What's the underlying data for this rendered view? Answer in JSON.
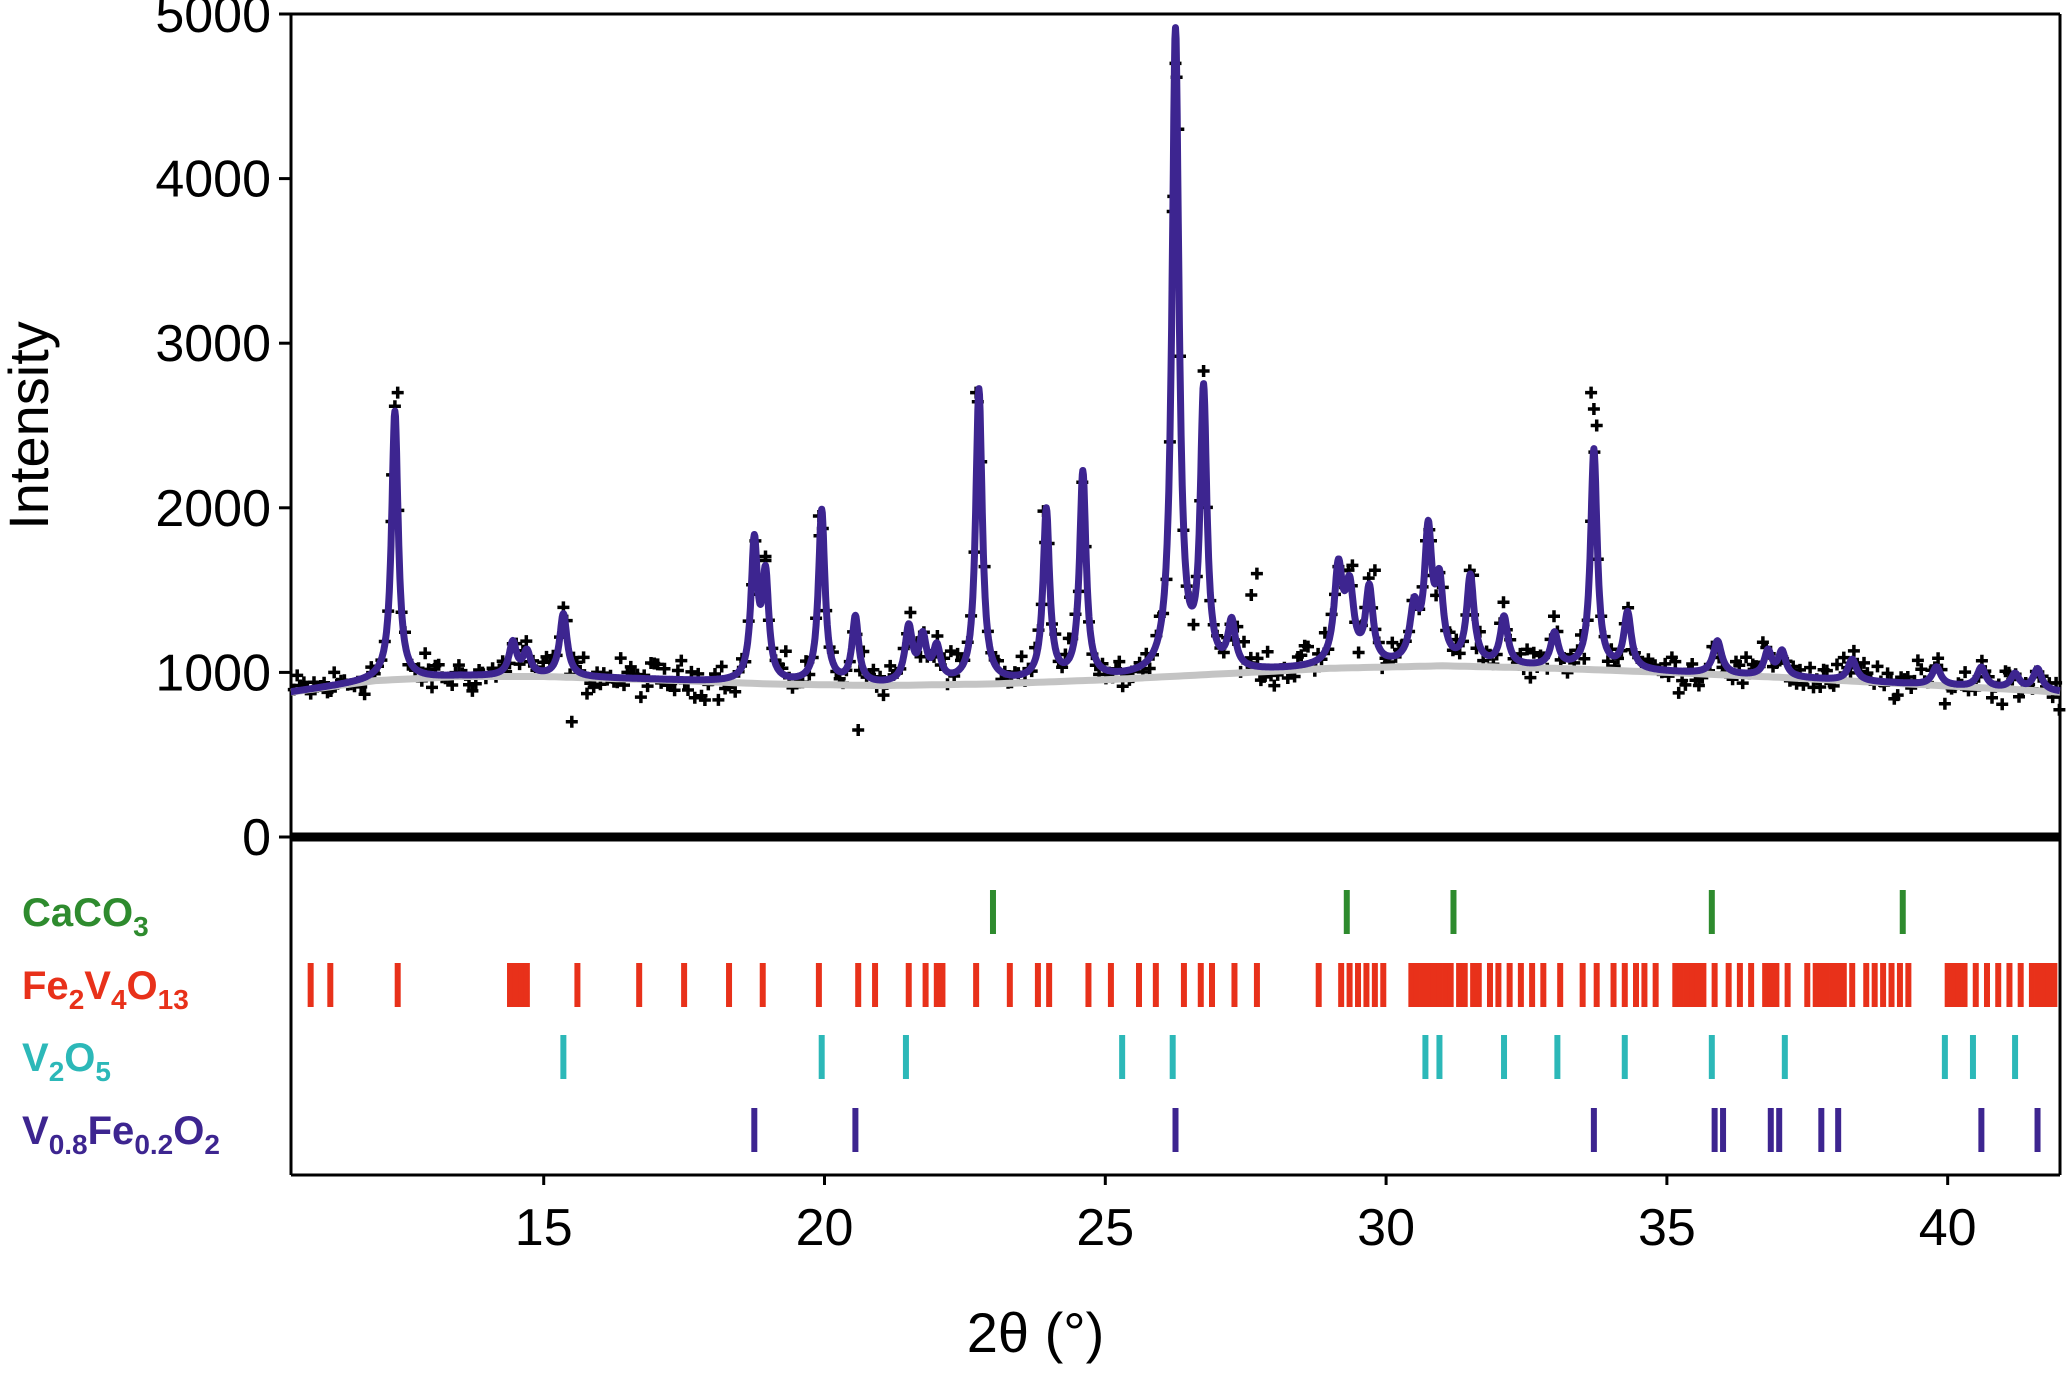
{
  "chart_data": {
    "type": "line",
    "title": "",
    "xlabel": "2θ (°)",
    "ylabel": "Intensity",
    "xlim": [
      10.5,
      42
    ],
    "ylim": [
      0,
      5000
    ],
    "x_ticks": [
      15,
      20,
      25,
      30,
      35,
      40
    ],
    "y_ticks": [
      0,
      1000,
      2000,
      3000,
      4000,
      5000
    ],
    "grid": false,
    "colors": {
      "observed": "#000000",
      "calculated": "#3d2590",
      "background": "#c4c4c4",
      "CaCO3": "#2e8b2e",
      "Fe2V4O13": "#e8311a",
      "V2O5": "#2cb8b8",
      "V0.8Fe0.2O2": "#3d2590"
    },
    "background_curve": [
      [
        10.5,
        880
      ],
      [
        12,
        950
      ],
      [
        13.5,
        975
      ],
      [
        15,
        975
      ],
      [
        17,
        955
      ],
      [
        19,
        930
      ],
      [
        21,
        920
      ],
      [
        23,
        930
      ],
      [
        25,
        955
      ],
      [
        27,
        990
      ],
      [
        29,
        1025
      ],
      [
        31,
        1040
      ],
      [
        33,
        1025
      ],
      [
        35,
        1000
      ],
      [
        37,
        970
      ],
      [
        39,
        935
      ],
      [
        41,
        900
      ],
      [
        42,
        880
      ]
    ],
    "peaks": [
      {
        "x": 12.35,
        "height": 1630,
        "width": 0.07
      },
      {
        "x": 14.45,
        "height": 200,
        "width": 0.08
      },
      {
        "x": 14.7,
        "height": 140,
        "width": 0.08
      },
      {
        "x": 15.35,
        "height": 380,
        "width": 0.08
      },
      {
        "x": 18.75,
        "height": 830,
        "width": 0.07
      },
      {
        "x": 18.95,
        "height": 620,
        "width": 0.07
      },
      {
        "x": 19.95,
        "height": 1050,
        "width": 0.07
      },
      {
        "x": 20.55,
        "height": 400,
        "width": 0.07
      },
      {
        "x": 21.5,
        "height": 330,
        "width": 0.08
      },
      {
        "x": 21.75,
        "height": 260,
        "width": 0.08
      },
      {
        "x": 22.0,
        "height": 200,
        "width": 0.08
      },
      {
        "x": 22.75,
        "height": 1780,
        "width": 0.07
      },
      {
        "x": 23.95,
        "height": 1030,
        "width": 0.07
      },
      {
        "x": 24.6,
        "height": 1250,
        "width": 0.07
      },
      {
        "x": 26.25,
        "height": 3900,
        "width": 0.075
      },
      {
        "x": 26.75,
        "height": 1670,
        "width": 0.07
      },
      {
        "x": 27.25,
        "height": 280,
        "width": 0.08
      },
      {
        "x": 29.15,
        "height": 570,
        "width": 0.09
      },
      {
        "x": 29.35,
        "height": 430,
        "width": 0.09
      },
      {
        "x": 29.7,
        "height": 450,
        "width": 0.08
      },
      {
        "x": 30.5,
        "height": 320,
        "width": 0.09
      },
      {
        "x": 30.75,
        "height": 770,
        "width": 0.08
      },
      {
        "x": 30.95,
        "height": 450,
        "width": 0.08
      },
      {
        "x": 31.5,
        "height": 530,
        "width": 0.08
      },
      {
        "x": 32.1,
        "height": 290,
        "width": 0.08
      },
      {
        "x": 33.0,
        "height": 200,
        "width": 0.08
      },
      {
        "x": 33.7,
        "height": 1330,
        "width": 0.07
      },
      {
        "x": 34.3,
        "height": 340,
        "width": 0.08
      },
      {
        "x": 35.9,
        "height": 200,
        "width": 0.09
      },
      {
        "x": 36.8,
        "height": 150,
        "width": 0.08
      },
      {
        "x": 37.05,
        "height": 150,
        "width": 0.08
      },
      {
        "x": 38.3,
        "height": 130,
        "width": 0.09
      },
      {
        "x": 39.8,
        "height": 110,
        "width": 0.09
      },
      {
        "x": 40.6,
        "height": 120,
        "width": 0.09
      },
      {
        "x": 41.2,
        "height": 90,
        "width": 0.09
      },
      {
        "x": 41.6,
        "height": 130,
        "width": 0.09
      }
    ],
    "observed_extra_points": [
      [
        12.4,
        2700
      ],
      [
        12.3,
        2200
      ],
      [
        18.95,
        1680
      ],
      [
        23.9,
        1980
      ],
      [
        26.25,
        4700
      ],
      [
        26.3,
        4300
      ],
      [
        26.2,
        3800
      ],
      [
        27.7,
        1600
      ],
      [
        27.6,
        1470
      ],
      [
        29.4,
        1650
      ],
      [
        29.8,
        1620
      ],
      [
        30.8,
        1800
      ],
      [
        31.55,
        1590
      ],
      [
        33.65,
        2700
      ],
      [
        33.7,
        2600
      ],
      [
        33.75,
        2500
      ],
      [
        22.7,
        2700
      ],
      [
        19.9,
        1950
      ],
      [
        15.5,
        700
      ],
      [
        20.6,
        650
      ]
    ],
    "reflection_markers": [
      {
        "phase": "CaCO3",
        "positions": [
          23.0,
          29.3,
          31.2,
          35.8,
          39.2
        ]
      },
      {
        "phase": "Fe2V4O13",
        "positions": [
          10.85,
          11.2,
          12.4,
          14.4,
          14.5,
          14.6,
          14.7,
          15.6,
          16.7,
          17.5,
          18.3,
          18.9,
          19.9,
          20.6,
          20.9,
          21.5,
          21.8,
          22.0,
          22.1,
          22.7,
          23.3,
          23.8,
          24.0,
          24.7,
          25.1,
          25.6,
          25.9,
          26.4,
          26.7,
          26.9,
          27.3,
          27.7,
          28.8,
          29.2,
          29.35,
          29.5,
          29.65,
          29.8,
          29.95,
          30.45,
          30.55,
          30.65,
          30.75,
          30.85,
          30.95,
          31.05,
          31.15,
          31.3,
          31.4,
          31.55,
          31.65,
          31.85,
          32.0,
          32.2,
          32.4,
          32.6,
          32.8,
          33.1,
          33.5,
          33.75,
          34.05,
          34.25,
          34.45,
          34.6,
          34.8,
          35.15,
          35.25,
          35.35,
          35.45,
          35.55,
          35.65,
          35.85,
          36.1,
          36.3,
          36.5,
          36.75,
          36.85,
          36.95,
          37.15,
          37.5,
          37.65,
          37.75,
          37.85,
          37.95,
          38.05,
          38.15,
          38.3,
          38.55,
          38.7,
          38.85,
          39.0,
          39.15,
          39.3,
          40.0,
          40.1,
          40.2,
          40.3,
          40.5,
          40.7,
          40.9,
          41.1,
          41.3,
          41.5,
          41.6,
          41.7,
          41.8,
          41.9
        ]
      },
      {
        "phase": "V2O5",
        "positions": [
          15.35,
          19.95,
          21.45,
          25.3,
          26.2,
          30.7,
          30.95,
          32.1,
          33.05,
          34.25,
          35.8,
          37.1,
          39.95,
          40.45,
          41.2
        ]
      },
      {
        "phase": "V0.8Fe0.2O2",
        "positions": [
          18.75,
          20.55,
          26.25,
          33.7,
          35.85,
          36.0,
          36.85,
          37.0,
          37.75,
          38.05,
          40.6,
          41.6
        ]
      }
    ],
    "legend": [
      {
        "name": "CaCO3",
        "text": "CaCO",
        "sub1": "3",
        "mid": "",
        "sub2": "",
        "tail": "",
        "sub3": ""
      },
      {
        "name": "Fe2V4O13",
        "text": "Fe",
        "sub1": "2",
        "mid": "V",
        "sub2": "4",
        "tail": "O",
        "sub3": "13"
      },
      {
        "name": "V2O5",
        "text": "V",
        "sub1": "2",
        "mid": "O",
        "sub2": "5",
        "tail": "",
        "sub3": ""
      },
      {
        "name": "V0.8Fe0.2O2",
        "text": "V",
        "sub1": "0.8",
        "mid": "Fe",
        "sub2": "0.2",
        "tail": "O",
        "sub3": "2"
      }
    ]
  }
}
